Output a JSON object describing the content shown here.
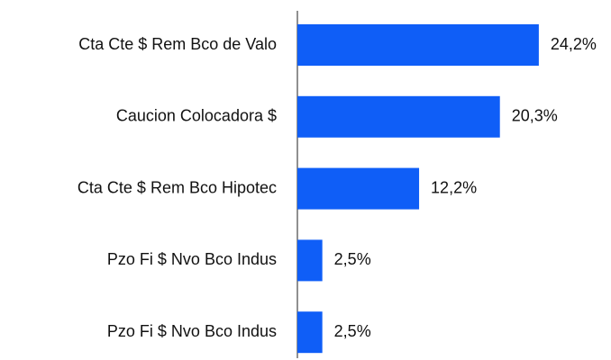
{
  "chart_data": {
    "type": "hbar",
    "categories": [
      "Cta Cte $ Rem Bco de Valo",
      "Caucion Colocadora $",
      "Cta Cte $ Rem Bco Hipotec",
      "Pzo Fi $ Nvo Bco Indus",
      "Pzo Fi $ Nvo Bco Indus"
    ],
    "values": [
      24.2,
      20.3,
      12.2,
      2.5,
      2.5
    ],
    "value_labels": [
      "24,2%",
      "20,3%",
      "12,2%",
      "2,5%",
      "2,5%"
    ],
    "color": "#0f5ef7"
  }
}
